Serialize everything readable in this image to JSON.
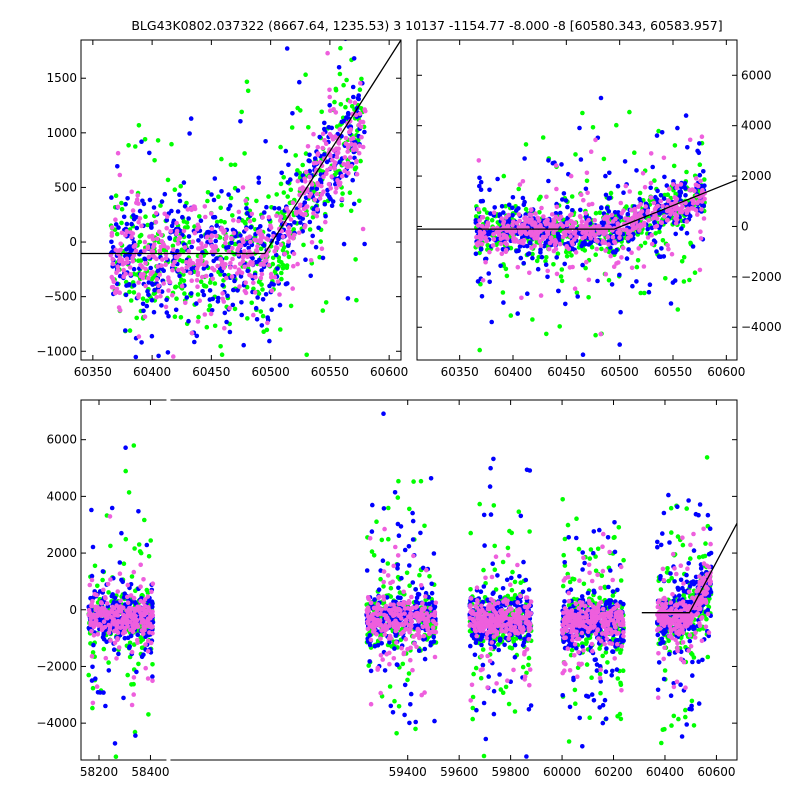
{
  "title": "BLG43K0802.037322 (8667.64, 1235.53)   3 10137 -1154.77 -8.000 -8 [60580.343, 60583.957]",
  "colors": {
    "green": "#00ff00",
    "blue": "#0000ff",
    "pink": "#ee5fdd",
    "model": "#000000"
  },
  "chart_data": [
    {
      "panel": "top-left",
      "type": "scatter",
      "xlim": [
        60340,
        60610
      ],
      "ylim": [
        -1080,
        1850
      ],
      "xticks": [
        60350,
        60400,
        60450,
        60500,
        60550,
        60600
      ],
      "yticks": [
        -1000,
        -500,
        0,
        500,
        1000,
        1500
      ],
      "ytick_side": "left",
      "model_line": [
        [
          60340,
          -105
        ],
        [
          60495,
          -105
        ],
        [
          60610,
          1850
        ]
      ]
    },
    {
      "panel": "top-right",
      "type": "scatter",
      "xlim": [
        60310,
        60610
      ],
      "ylim": [
        -5300,
        7400
      ],
      "xticks": [
        60350,
        60400,
        60450,
        60500,
        60550,
        60600
      ],
      "yticks": [
        -4000,
        -2000,
        0,
        2000,
        4000,
        6000
      ],
      "ytick_side": "right",
      "model_line": [
        [
          60310,
          -105
        ],
        [
          60495,
          -105
        ],
        [
          60610,
          1850
        ]
      ]
    },
    {
      "panel": "bottom",
      "type": "scatter",
      "xlim": [
        58130,
        60680
      ],
      "ylim": [
        -5300,
        7400
      ],
      "xticks": [
        58200,
        58400,
        59400,
        59600,
        59800,
        60000,
        60200,
        60400,
        60600
      ],
      "yticks": [
        -4000,
        -2000,
        0,
        2000,
        4000,
        6000
      ],
      "ytick_side": "left",
      "model_line": [
        [
          60310,
          -105
        ],
        [
          60495,
          -105
        ],
        [
          60680,
          3050
        ]
      ],
      "seasons": [
        {
          "range": [
            58160,
            58410
          ],
          "center": -300
        },
        {
          "range": [
            59240,
            59510
          ],
          "center": -350
        },
        {
          "range": [
            59640,
            59880
          ],
          "center": -350
        },
        {
          "range": [
            60000,
            60240
          ],
          "center": -450
        },
        {
          "range": [
            60370,
            60580
          ],
          "center": -250
        }
      ]
    }
  ]
}
